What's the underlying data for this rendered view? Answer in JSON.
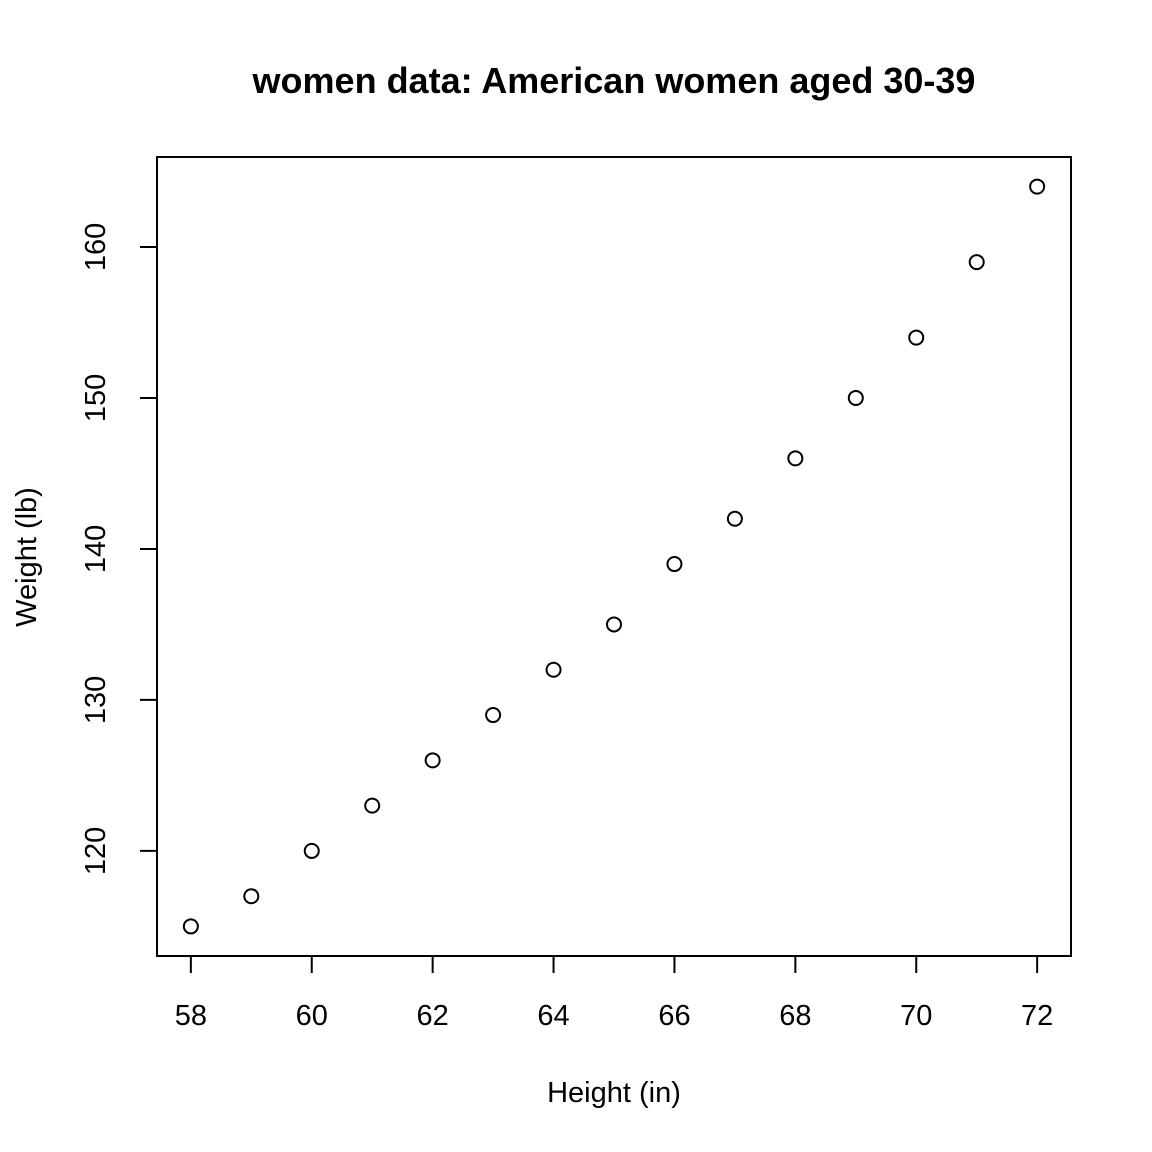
{
  "chart_data": {
    "type": "scatter",
    "title": "women data: American women aged 30-39",
    "xlabel": "Height (in)",
    "ylabel": "Weight (lb)",
    "x": [
      58,
      59,
      60,
      61,
      62,
      63,
      64,
      65,
      66,
      67,
      68,
      69,
      70,
      71,
      72
    ],
    "y": [
      115,
      117,
      120,
      123,
      126,
      129,
      132,
      135,
      139,
      142,
      146,
      150,
      154,
      159,
      164
    ],
    "xlim": [
      57.44,
      72.56
    ],
    "ylim": [
      113.04,
      165.96
    ],
    "xticks": [
      58,
      60,
      62,
      64,
      66,
      68,
      70,
      72
    ],
    "yticks": [
      120,
      130,
      140,
      150,
      160
    ],
    "marker": "open-circle",
    "grid": false,
    "legend": "none"
  }
}
